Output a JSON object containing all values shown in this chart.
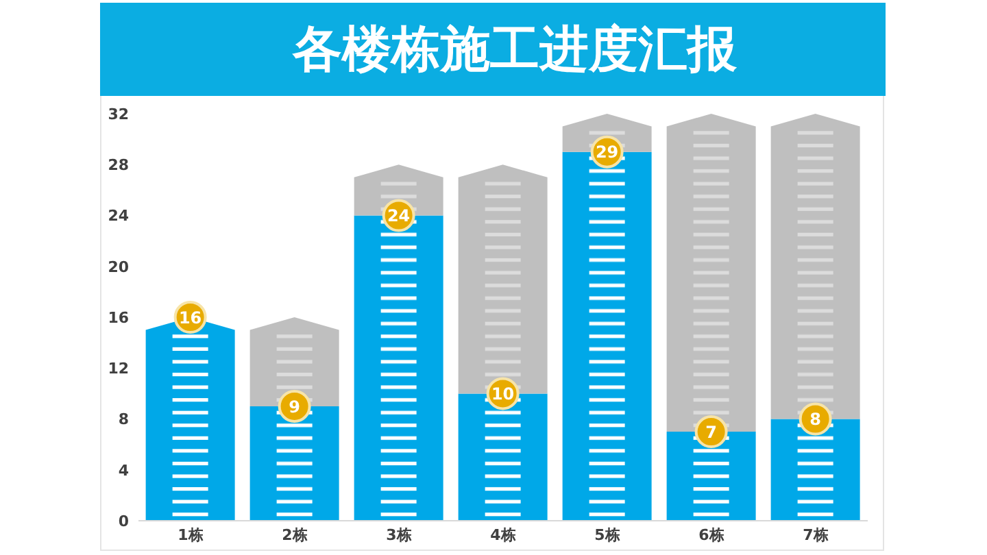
{
  "chart_data": {
    "type": "bar",
    "title": "各楼栋施工进度汇报",
    "categories": [
      "1栋",
      "2栋",
      "3栋",
      "4栋",
      "5栋",
      "6栋",
      "7栋"
    ],
    "stacked": true,
    "series": [
      {
        "color": "#00a8e8",
        "values": [
          16,
          9,
          24,
          10,
          29,
          7,
          8
        ],
        "value_labels": [
          "16",
          "9",
          "24",
          "10",
          "29",
          "7",
          "8"
        ]
      },
      {
        "color": "#bfbfbf",
        "values": [
          0,
          7,
          4,
          18,
          3,
          25,
          24
        ]
      }
    ],
    "ylim": [
      0,
      32
    ],
    "yticks": [
      0,
      4,
      8,
      12,
      16,
      20,
      24,
      28,
      32
    ]
  }
}
